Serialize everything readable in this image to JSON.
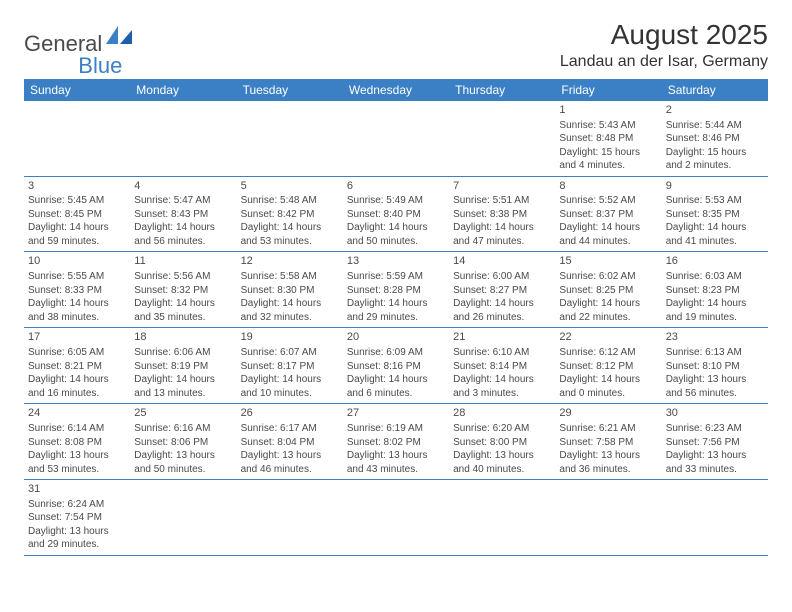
{
  "brand": {
    "text1": "General",
    "text2": "Blue"
  },
  "title": "August 2025",
  "location": "Landau an der Isar, Germany",
  "colors": {
    "header_bg": "#3b7fc4",
    "header_text": "#ffffff",
    "cell_border": "#3b7fc4",
    "page_bg": "#ffffff",
    "text": "#4a4a4a"
  },
  "day_headers": [
    "Sunday",
    "Monday",
    "Tuesday",
    "Wednesday",
    "Thursday",
    "Friday",
    "Saturday"
  ],
  "weeks": [
    [
      null,
      null,
      null,
      null,
      null,
      {
        "n": "1",
        "sr": "Sunrise: 5:43 AM",
        "ss": "Sunset: 8:48 PM",
        "d1": "Daylight: 15 hours",
        "d2": "and 4 minutes."
      },
      {
        "n": "2",
        "sr": "Sunrise: 5:44 AM",
        "ss": "Sunset: 8:46 PM",
        "d1": "Daylight: 15 hours",
        "d2": "and 2 minutes."
      }
    ],
    [
      {
        "n": "3",
        "sr": "Sunrise: 5:45 AM",
        "ss": "Sunset: 8:45 PM",
        "d1": "Daylight: 14 hours",
        "d2": "and 59 minutes."
      },
      {
        "n": "4",
        "sr": "Sunrise: 5:47 AM",
        "ss": "Sunset: 8:43 PM",
        "d1": "Daylight: 14 hours",
        "d2": "and 56 minutes."
      },
      {
        "n": "5",
        "sr": "Sunrise: 5:48 AM",
        "ss": "Sunset: 8:42 PM",
        "d1": "Daylight: 14 hours",
        "d2": "and 53 minutes."
      },
      {
        "n": "6",
        "sr": "Sunrise: 5:49 AM",
        "ss": "Sunset: 8:40 PM",
        "d1": "Daylight: 14 hours",
        "d2": "and 50 minutes."
      },
      {
        "n": "7",
        "sr": "Sunrise: 5:51 AM",
        "ss": "Sunset: 8:38 PM",
        "d1": "Daylight: 14 hours",
        "d2": "and 47 minutes."
      },
      {
        "n": "8",
        "sr": "Sunrise: 5:52 AM",
        "ss": "Sunset: 8:37 PM",
        "d1": "Daylight: 14 hours",
        "d2": "and 44 minutes."
      },
      {
        "n": "9",
        "sr": "Sunrise: 5:53 AM",
        "ss": "Sunset: 8:35 PM",
        "d1": "Daylight: 14 hours",
        "d2": "and 41 minutes."
      }
    ],
    [
      {
        "n": "10",
        "sr": "Sunrise: 5:55 AM",
        "ss": "Sunset: 8:33 PM",
        "d1": "Daylight: 14 hours",
        "d2": "and 38 minutes."
      },
      {
        "n": "11",
        "sr": "Sunrise: 5:56 AM",
        "ss": "Sunset: 8:32 PM",
        "d1": "Daylight: 14 hours",
        "d2": "and 35 minutes."
      },
      {
        "n": "12",
        "sr": "Sunrise: 5:58 AM",
        "ss": "Sunset: 8:30 PM",
        "d1": "Daylight: 14 hours",
        "d2": "and 32 minutes."
      },
      {
        "n": "13",
        "sr": "Sunrise: 5:59 AM",
        "ss": "Sunset: 8:28 PM",
        "d1": "Daylight: 14 hours",
        "d2": "and 29 minutes."
      },
      {
        "n": "14",
        "sr": "Sunrise: 6:00 AM",
        "ss": "Sunset: 8:27 PM",
        "d1": "Daylight: 14 hours",
        "d2": "and 26 minutes."
      },
      {
        "n": "15",
        "sr": "Sunrise: 6:02 AM",
        "ss": "Sunset: 8:25 PM",
        "d1": "Daylight: 14 hours",
        "d2": "and 22 minutes."
      },
      {
        "n": "16",
        "sr": "Sunrise: 6:03 AM",
        "ss": "Sunset: 8:23 PM",
        "d1": "Daylight: 14 hours",
        "d2": "and 19 minutes."
      }
    ],
    [
      {
        "n": "17",
        "sr": "Sunrise: 6:05 AM",
        "ss": "Sunset: 8:21 PM",
        "d1": "Daylight: 14 hours",
        "d2": "and 16 minutes."
      },
      {
        "n": "18",
        "sr": "Sunrise: 6:06 AM",
        "ss": "Sunset: 8:19 PM",
        "d1": "Daylight: 14 hours",
        "d2": "and 13 minutes."
      },
      {
        "n": "19",
        "sr": "Sunrise: 6:07 AM",
        "ss": "Sunset: 8:17 PM",
        "d1": "Daylight: 14 hours",
        "d2": "and 10 minutes."
      },
      {
        "n": "20",
        "sr": "Sunrise: 6:09 AM",
        "ss": "Sunset: 8:16 PM",
        "d1": "Daylight: 14 hours",
        "d2": "and 6 minutes."
      },
      {
        "n": "21",
        "sr": "Sunrise: 6:10 AM",
        "ss": "Sunset: 8:14 PM",
        "d1": "Daylight: 14 hours",
        "d2": "and 3 minutes."
      },
      {
        "n": "22",
        "sr": "Sunrise: 6:12 AM",
        "ss": "Sunset: 8:12 PM",
        "d1": "Daylight: 14 hours",
        "d2": "and 0 minutes."
      },
      {
        "n": "23",
        "sr": "Sunrise: 6:13 AM",
        "ss": "Sunset: 8:10 PM",
        "d1": "Daylight: 13 hours",
        "d2": "and 56 minutes."
      }
    ],
    [
      {
        "n": "24",
        "sr": "Sunrise: 6:14 AM",
        "ss": "Sunset: 8:08 PM",
        "d1": "Daylight: 13 hours",
        "d2": "and 53 minutes."
      },
      {
        "n": "25",
        "sr": "Sunrise: 6:16 AM",
        "ss": "Sunset: 8:06 PM",
        "d1": "Daylight: 13 hours",
        "d2": "and 50 minutes."
      },
      {
        "n": "26",
        "sr": "Sunrise: 6:17 AM",
        "ss": "Sunset: 8:04 PM",
        "d1": "Daylight: 13 hours",
        "d2": "and 46 minutes."
      },
      {
        "n": "27",
        "sr": "Sunrise: 6:19 AM",
        "ss": "Sunset: 8:02 PM",
        "d1": "Daylight: 13 hours",
        "d2": "and 43 minutes."
      },
      {
        "n": "28",
        "sr": "Sunrise: 6:20 AM",
        "ss": "Sunset: 8:00 PM",
        "d1": "Daylight: 13 hours",
        "d2": "and 40 minutes."
      },
      {
        "n": "29",
        "sr": "Sunrise: 6:21 AM",
        "ss": "Sunset: 7:58 PM",
        "d1": "Daylight: 13 hours",
        "d2": "and 36 minutes."
      },
      {
        "n": "30",
        "sr": "Sunrise: 6:23 AM",
        "ss": "Sunset: 7:56 PM",
        "d1": "Daylight: 13 hours",
        "d2": "and 33 minutes."
      }
    ],
    [
      {
        "n": "31",
        "sr": "Sunrise: 6:24 AM",
        "ss": "Sunset: 7:54 PM",
        "d1": "Daylight: 13 hours",
        "d2": "and 29 minutes."
      },
      null,
      null,
      null,
      null,
      null,
      null
    ]
  ]
}
